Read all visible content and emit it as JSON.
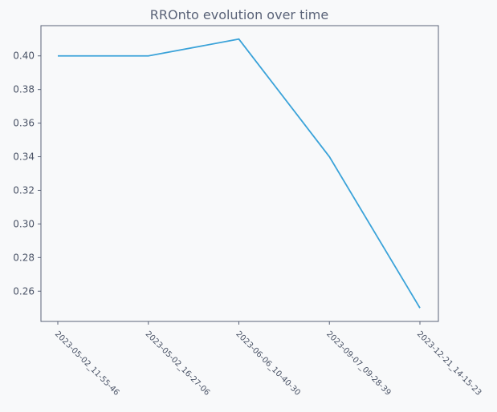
{
  "chart_data": {
    "type": "line",
    "title": "RROnto evolution over time",
    "xlabel": "",
    "ylabel": "",
    "categories": [
      "2023-05-02_11-55-46",
      "2023-05-02_16-27-06",
      "2023-06-06_10-40-30",
      "2023-09-07_09-28-39",
      "2023-12-21_14-15-23"
    ],
    "series": [
      {
        "values": [
          0.4,
          0.4,
          0.41,
          0.34,
          0.25
        ],
        "color": "#3ba3d9"
      }
    ],
    "yticks": [
      "0.26",
      "0.28",
      "0.30",
      "0.32",
      "0.34",
      "0.36",
      "0.38",
      "0.40"
    ],
    "ylim": [
      0.242,
      0.418
    ],
    "grid": false,
    "legend": "none",
    "colors": {
      "background": "#f8f9fa",
      "axes": "#5a6378",
      "text": "#4a5366"
    }
  }
}
